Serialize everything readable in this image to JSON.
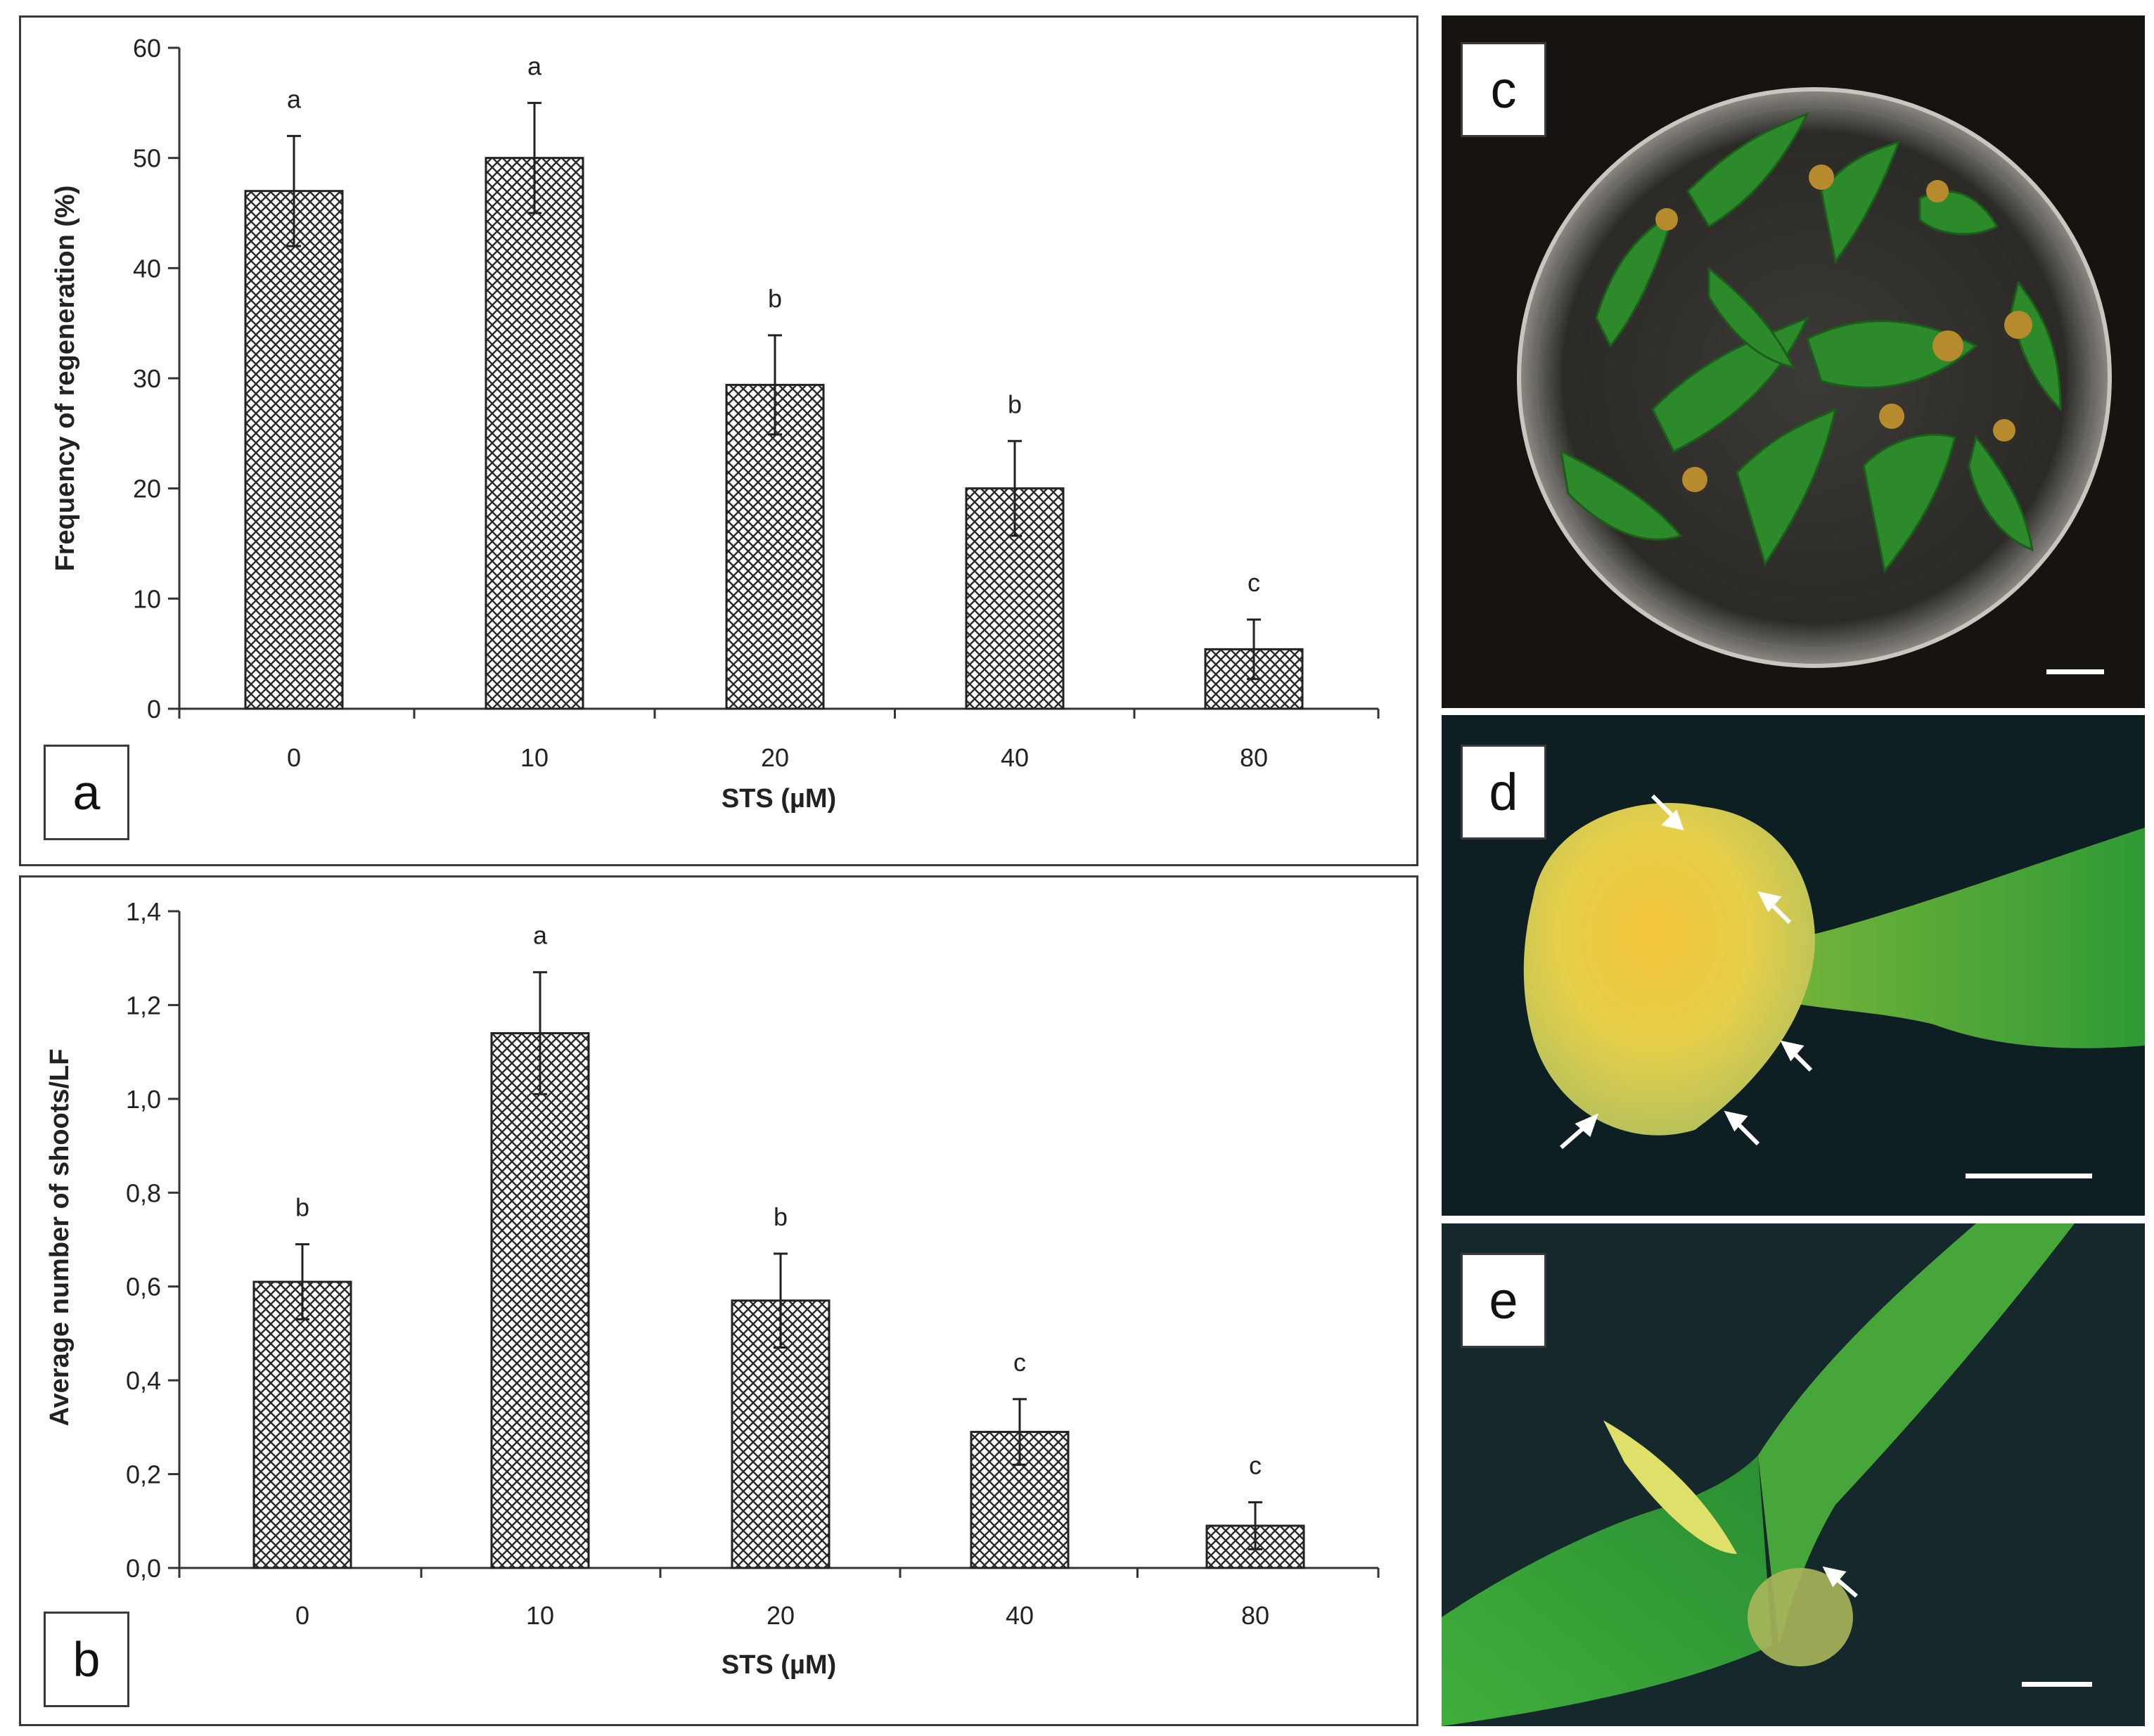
{
  "chart_data": [
    {
      "type": "bar",
      "panel_label": "a",
      "categories": [
        "0",
        "10",
        "20",
        "40",
        "80"
      ],
      "values": [
        47,
        50,
        29.4,
        20,
        5.4
      ],
      "errors": [
        5,
        5,
        4.5,
        4.3,
        2.7
      ],
      "letters": [
        "a",
        "a",
        "b",
        "b",
        "c"
      ],
      "xlabel": "STS (µM)",
      "ylabel": "Frequency of regeneration (%)",
      "ylim": [
        0,
        60
      ],
      "yticks": [
        "0",
        "10",
        "20",
        "30",
        "40",
        "50",
        "60"
      ],
      "grid": false,
      "bar_pattern": "crosshatch"
    },
    {
      "type": "bar",
      "panel_label": "b",
      "categories": [
        "0",
        "10",
        "20",
        "40",
        "80"
      ],
      "values": [
        0.61,
        1.14,
        0.57,
        0.29,
        0.09
      ],
      "errors": [
        0.08,
        0.13,
        0.1,
        0.07,
        0.05
      ],
      "letters": [
        "b",
        "a",
        "b",
        "c",
        "c"
      ],
      "xlabel": "STS (µM)",
      "ylabel": "Average number of shoots/LF",
      "ylim": [
        0,
        1.4
      ],
      "yticks": [
        "0,0",
        "0,2",
        "0,4",
        "0,6",
        "0,8",
        "1,0",
        "1,2",
        "1,4"
      ],
      "grid": false,
      "bar_pattern": "crosshatch"
    }
  ],
  "photos": [
    {
      "label": "c"
    },
    {
      "label": "d"
    },
    {
      "label": "e"
    }
  ]
}
